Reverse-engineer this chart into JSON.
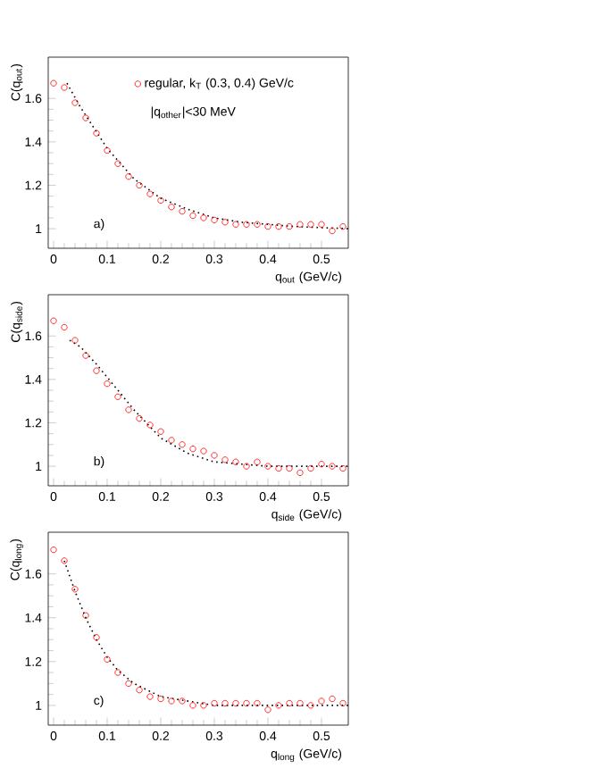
{
  "chart_data": [
    {
      "type": "scatter",
      "xlabel": "q$_{out}$ (GeV/c)",
      "ylabel": "C(q$_{out}$)",
      "annotations": [
        "a)",
        "|q$_{other}$|<30 MeV"
      ],
      "xlim": [
        -0.01,
        0.55
      ],
      "ylim": [
        0.91,
        1.79
      ],
      "xticks": [
        0,
        0.1,
        0.2,
        0.3,
        0.4,
        0.5
      ],
      "yticks": [
        1,
        1.2,
        1.4,
        1.6
      ],
      "legend": "top right",
      "x": [
        0,
        0.02,
        0.04,
        0.06,
        0.08,
        0.1,
        0.12,
        0.14,
        0.16,
        0.18,
        0.2,
        0.22,
        0.24,
        0.26,
        0.28,
        0.3,
        0.32,
        0.34,
        0.36,
        0.38,
        0.4,
        0.42,
        0.44,
        0.46,
        0.48,
        0.5,
        0.52,
        0.54
      ],
      "series": [
        {
          "name": "regular, k$_{T}$ (0.3, 0.4) GeV/c",
          "marker": "circle",
          "color": "#ff0000",
          "values": [
            1.67,
            1.65,
            1.58,
            1.51,
            1.44,
            1.36,
            1.3,
            1.24,
            1.2,
            1.16,
            1.13,
            1.1,
            1.08,
            1.06,
            1.05,
            1.04,
            1.03,
            1.02,
            1.02,
            1.02,
            1.01,
            1.01,
            1.01,
            1.02,
            1.02,
            1.02,
            0.99,
            1.01
          ]
        },
        {
          "type": "line",
          "line_style": "dotted",
          "color": "#000000",
          "x": [
            0.025,
            0.05,
            0.1,
            0.15,
            0.2,
            0.25,
            0.3,
            0.35,
            0.4,
            0.45,
            0.55
          ],
          "values": [
            1.67,
            1.56,
            1.37,
            1.23,
            1.14,
            1.09,
            1.05,
            1.03,
            1.02,
            1.01,
            1.0
          ]
        }
      ]
    },
    {
      "type": "scatter",
      "xlabel": "q$_{side}$ (GeV/c)",
      "ylabel": "C(q$_{side}$)",
      "annotations": [
        "b)"
      ],
      "xlim": [
        -0.01,
        0.55
      ],
      "ylim": [
        0.91,
        1.79
      ],
      "xticks": [
        0,
        0.1,
        0.2,
        0.3,
        0.4,
        0.5
      ],
      "yticks": [
        1,
        1.2,
        1.4,
        1.6
      ],
      "x": [
        0,
        0.02,
        0.04,
        0.06,
        0.08,
        0.1,
        0.12,
        0.14,
        0.16,
        0.18,
        0.2,
        0.22,
        0.24,
        0.26,
        0.28,
        0.3,
        0.32,
        0.34,
        0.36,
        0.38,
        0.4,
        0.42,
        0.44,
        0.46,
        0.48,
        0.5,
        0.52,
        0.54
      ],
      "series": [
        {
          "marker": "circle",
          "color": "#ff0000",
          "values": [
            1.67,
            1.64,
            1.58,
            1.51,
            1.44,
            1.38,
            1.32,
            1.26,
            1.22,
            1.19,
            1.16,
            1.12,
            1.1,
            1.08,
            1.07,
            1.05,
            1.03,
            1.02,
            1.0,
            1.02,
            1.0,
            0.99,
            0.99,
            0.97,
            0.99,
            1.01,
            1.0,
            0.99
          ]
        },
        {
          "type": "line",
          "line_style": "dotted",
          "color": "#000000",
          "x": [
            0.03,
            0.05,
            0.08,
            0.1,
            0.15,
            0.2,
            0.25,
            0.3,
            0.35,
            0.4,
            0.55
          ],
          "values": [
            1.58,
            1.55,
            1.47,
            1.41,
            1.26,
            1.13,
            1.06,
            1.02,
            1.01,
            1.0,
            1.0
          ]
        }
      ]
    },
    {
      "type": "scatter",
      "xlabel": "q$_{long}$ (GeV/c)",
      "ylabel": "C(q$_{long}$)",
      "annotations": [
        "c)"
      ],
      "xlim": [
        -0.01,
        0.55
      ],
      "ylim": [
        0.91,
        1.79
      ],
      "xticks": [
        0,
        0.1,
        0.2,
        0.3,
        0.4,
        0.5
      ],
      "yticks": [
        1,
        1.2,
        1.4,
        1.6
      ],
      "x": [
        0,
        0.02,
        0.04,
        0.06,
        0.08,
        0.1,
        0.12,
        0.14,
        0.16,
        0.18,
        0.2,
        0.22,
        0.24,
        0.26,
        0.28,
        0.3,
        0.32,
        0.34,
        0.36,
        0.38,
        0.4,
        0.42,
        0.44,
        0.46,
        0.48,
        0.5,
        0.52,
        0.54
      ],
      "series": [
        {
          "marker": "circle",
          "color": "#ff0000",
          "values": [
            1.71,
            1.66,
            1.53,
            1.41,
            1.31,
            1.21,
            1.15,
            1.1,
            1.07,
            1.04,
            1.03,
            1.02,
            1.02,
            1.0,
            1.0,
            1.01,
            1.01,
            1.01,
            1.01,
            1.01,
            0.98,
            1.0,
            1.01,
            1.01,
            1.0,
            1.02,
            1.03,
            1.01
          ]
        },
        {
          "type": "line",
          "line_style": "dotted",
          "color": "#000000",
          "x": [
            0.02,
            0.04,
            0.06,
            0.08,
            0.1,
            0.12,
            0.15,
            0.2,
            0.25,
            0.3,
            0.4,
            0.55
          ],
          "values": [
            1.66,
            1.52,
            1.4,
            1.3,
            1.22,
            1.16,
            1.1,
            1.04,
            1.02,
            1.0,
            1.0,
            1.0
          ]
        }
      ]
    }
  ]
}
